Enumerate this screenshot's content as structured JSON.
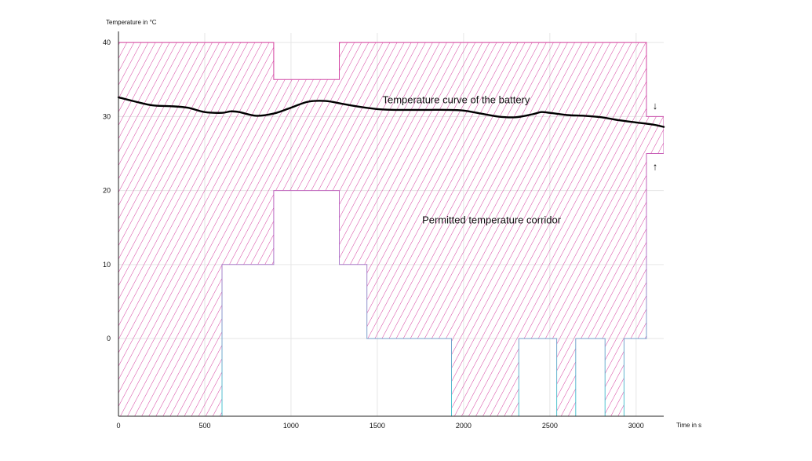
{
  "chart_data": {
    "type": "area",
    "title": "",
    "ylabel": "Temperature in °C",
    "xlabel": "Time in s",
    "xlim": [
      0,
      3160
    ],
    "ylim": [
      -10.5,
      41.5
    ],
    "x_ticks": [
      0,
      500,
      1000,
      1500,
      2000,
      2500,
      3000
    ],
    "y_ticks": [
      0,
      10,
      20,
      30,
      40
    ],
    "grid": true,
    "colors": {
      "corridor_top": "#d6409f",
      "corridor_bottom": "#4ec3d0",
      "curve": "#000000",
      "grid": "#e6e6e6"
    },
    "corridor": {
      "name": "Permitted temperature corridor",
      "upper": [
        [
          0,
          40
        ],
        [
          900,
          40
        ],
        [
          900,
          35
        ],
        [
          1280,
          35
        ],
        [
          1280,
          40
        ],
        [
          3060,
          40
        ],
        [
          3060,
          30
        ],
        [
          3160,
          30
        ]
      ],
      "lower": [
        [
          0,
          -10.5
        ],
        [
          600,
          -10.5
        ],
        [
          600,
          10
        ],
        [
          900,
          10
        ],
        [
          900,
          20
        ],
        [
          1280,
          20
        ],
        [
          1280,
          10
        ],
        [
          1440,
          10
        ],
        [
          1440,
          0
        ],
        [
          1930,
          0
        ],
        [
          1930,
          -10.5
        ],
        [
          2320,
          -10.5
        ],
        [
          2320,
          0
        ],
        [
          2540,
          0
        ],
        [
          2540,
          -10.5
        ],
        [
          2650,
          -10.5
        ],
        [
          2650,
          0
        ],
        [
          2820,
          0
        ],
        [
          2820,
          -10.5
        ],
        [
          2930,
          -10.5
        ],
        [
          2930,
          0
        ],
        [
          3060,
          0
        ],
        [
          3060,
          25
        ],
        [
          3160,
          25
        ]
      ]
    },
    "series": [
      {
        "name": "Temperature curve of the battery",
        "x": [
          0,
          100,
          200,
          300,
          400,
          500,
          600,
          650,
          700,
          800,
          900,
          1000,
          1100,
          1200,
          1300,
          1400,
          1500,
          1600,
          1700,
          1800,
          1900,
          2000,
          2100,
          2200,
          2300,
          2400,
          2450,
          2500,
          2600,
          2700,
          2800,
          2900,
          3000,
          3100,
          3160
        ],
        "y": [
          32.6,
          32.0,
          31.5,
          31.4,
          31.2,
          30.6,
          30.5,
          30.7,
          30.6,
          30.1,
          30.4,
          31.2,
          32.0,
          32.1,
          31.7,
          31.3,
          31.0,
          30.9,
          30.9,
          30.9,
          30.9,
          30.8,
          30.4,
          30.0,
          29.9,
          30.3,
          30.6,
          30.5,
          30.2,
          30.1,
          29.9,
          29.5,
          29.2,
          28.9,
          28.6
        ]
      }
    ],
    "annotations": [
      {
        "text": "Temperature curve of the battery",
        "x": 1530,
        "y": 32.2
      },
      {
        "text": "Permitted temperature corridor",
        "x": 1760,
        "y": 16.0
      },
      {
        "text": "↓",
        "x": 3110,
        "y": 31.5
      },
      {
        "text": "↑",
        "x": 3110,
        "y": 23.3
      }
    ]
  }
}
